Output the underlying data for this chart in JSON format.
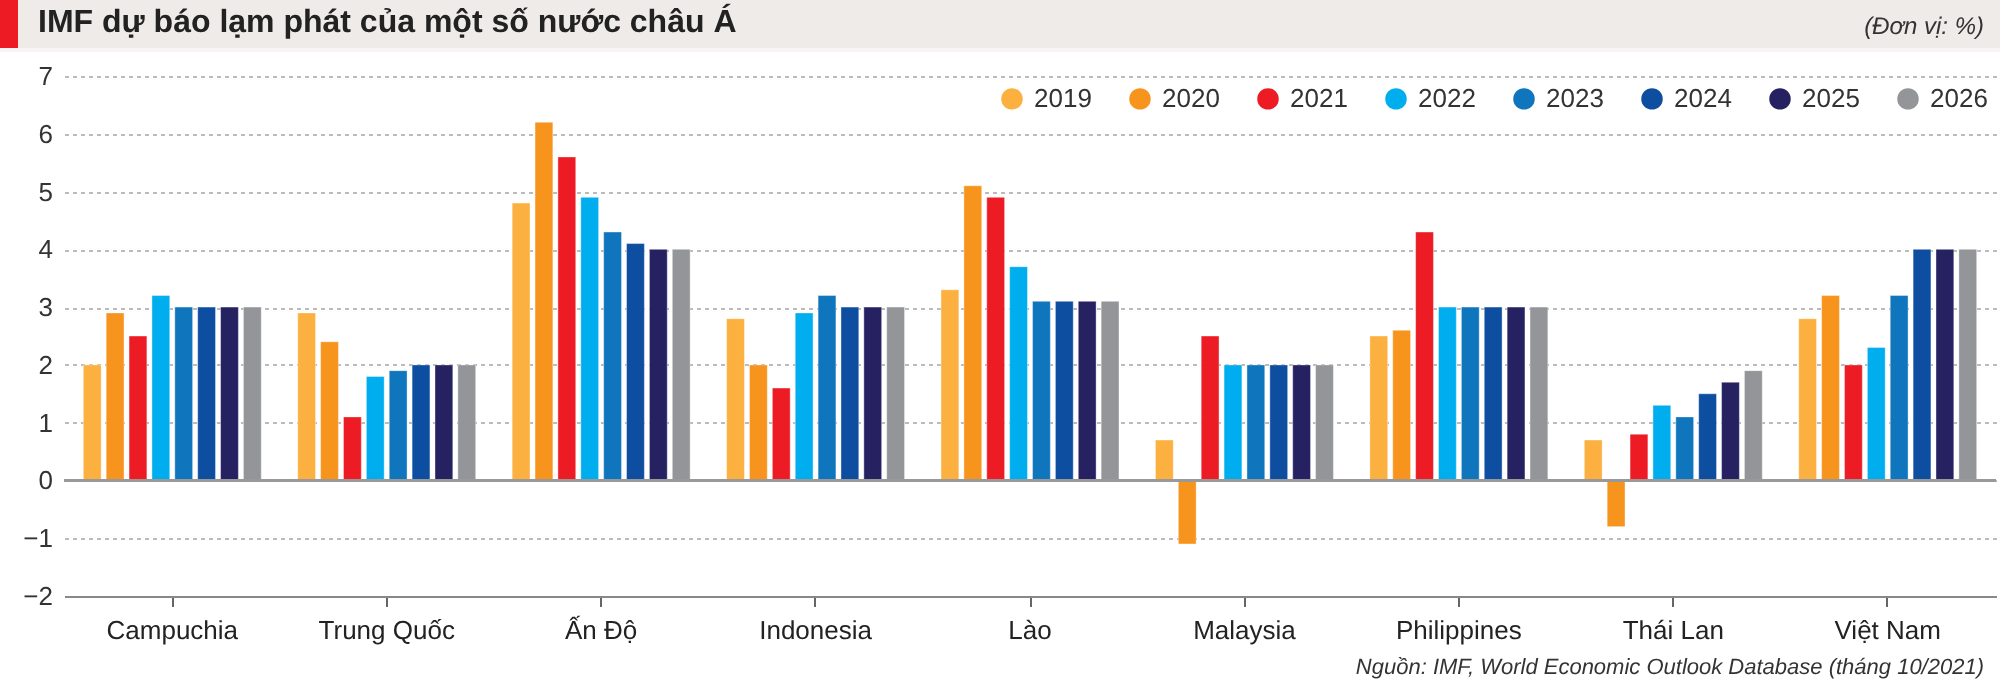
{
  "chart_data": {
    "type": "bar",
    "title": "IMF dự báo lạm phát của một số nước châu Á",
    "subtitle": "(Đơn vị: %)",
    "categories": [
      "Campuchia",
      "Trung Quốc",
      "Ấn Độ",
      "Indonesia",
      "Lào",
      "Malaysia",
      "Philippines",
      "Thái Lan",
      "Việt Nam"
    ],
    "series": [
      {
        "name": "2019",
        "color": "#fbb040",
        "values": [
          2.0,
          2.9,
          4.8,
          2.8,
          3.3,
          0.7,
          2.5,
          0.7,
          2.8
        ]
      },
      {
        "name": "2020",
        "color": "#f7941d",
        "values": [
          2.9,
          2.4,
          6.2,
          2.0,
          5.1,
          -1.1,
          2.6,
          -0.8,
          3.2
        ]
      },
      {
        "name": "2021",
        "color": "#ed1c24",
        "values": [
          2.5,
          1.1,
          5.6,
          1.6,
          4.9,
          2.5,
          4.3,
          0.8,
          2.0
        ]
      },
      {
        "name": "2022",
        "color": "#00aeef",
        "values": [
          3.2,
          1.8,
          4.9,
          2.9,
          3.7,
          2.0,
          3.0,
          1.3,
          2.3
        ]
      },
      {
        "name": "2023",
        "color": "#0f75bc",
        "values": [
          3.0,
          1.9,
          4.3,
          3.2,
          3.1,
          2.0,
          3.0,
          1.1,
          3.2
        ]
      },
      {
        "name": "2024",
        "color": "#0d4ea0",
        "values": [
          3.0,
          2.0,
          4.1,
          3.0,
          3.1,
          2.0,
          3.0,
          1.5,
          4.0
        ]
      },
      {
        "name": "2025",
        "color": "#262262",
        "values": [
          3.0,
          2.0,
          4.0,
          3.0,
          3.1,
          2.0,
          3.0,
          1.7,
          4.0
        ]
      },
      {
        "name": "2026",
        "color": "#939598",
        "values": [
          3.0,
          2.0,
          4.0,
          3.0,
          3.1,
          2.0,
          3.0,
          1.9,
          4.0
        ]
      }
    ],
    "ylim": [
      -2,
      7
    ],
    "yticks": [
      -2,
      -1,
      0,
      1,
      2,
      3,
      4,
      5,
      6,
      7
    ],
    "grid": "y",
    "legend": "top right",
    "ref_lines": [
      {
        "axis": "y",
        "value": 0,
        "color": "#999999"
      }
    ],
    "annotations": [
      "Nguồn: IMF, World Economic Outlook Database (tháng 10/2021)"
    ]
  }
}
